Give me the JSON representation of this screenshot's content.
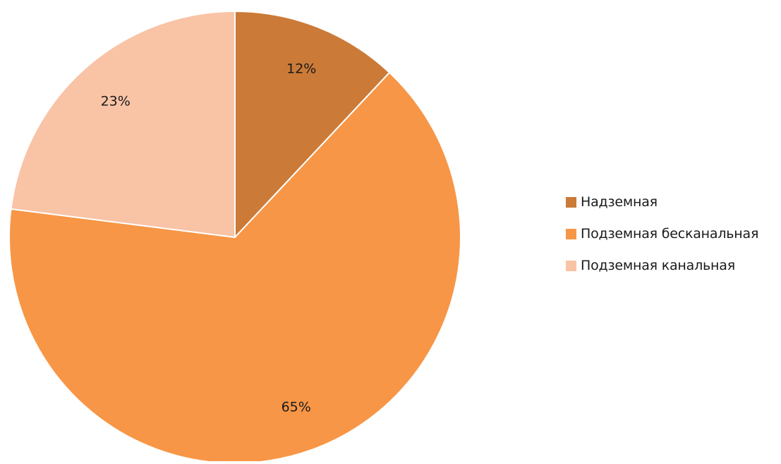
{
  "chart_data": {
    "type": "pie",
    "categories": [
      "Надземная",
      "Подземная бесканальная",
      "Подземная канальная"
    ],
    "values": [
      12,
      65,
      23
    ],
    "data_labels": [
      "12%",
      "65%",
      "23%"
    ],
    "colors": [
      "#CB7A38",
      "#F79646",
      "#F9C3A6"
    ],
    "start_angle": "12 o'clock",
    "direction": "clockwise",
    "legend_position": "right",
    "title": ""
  }
}
